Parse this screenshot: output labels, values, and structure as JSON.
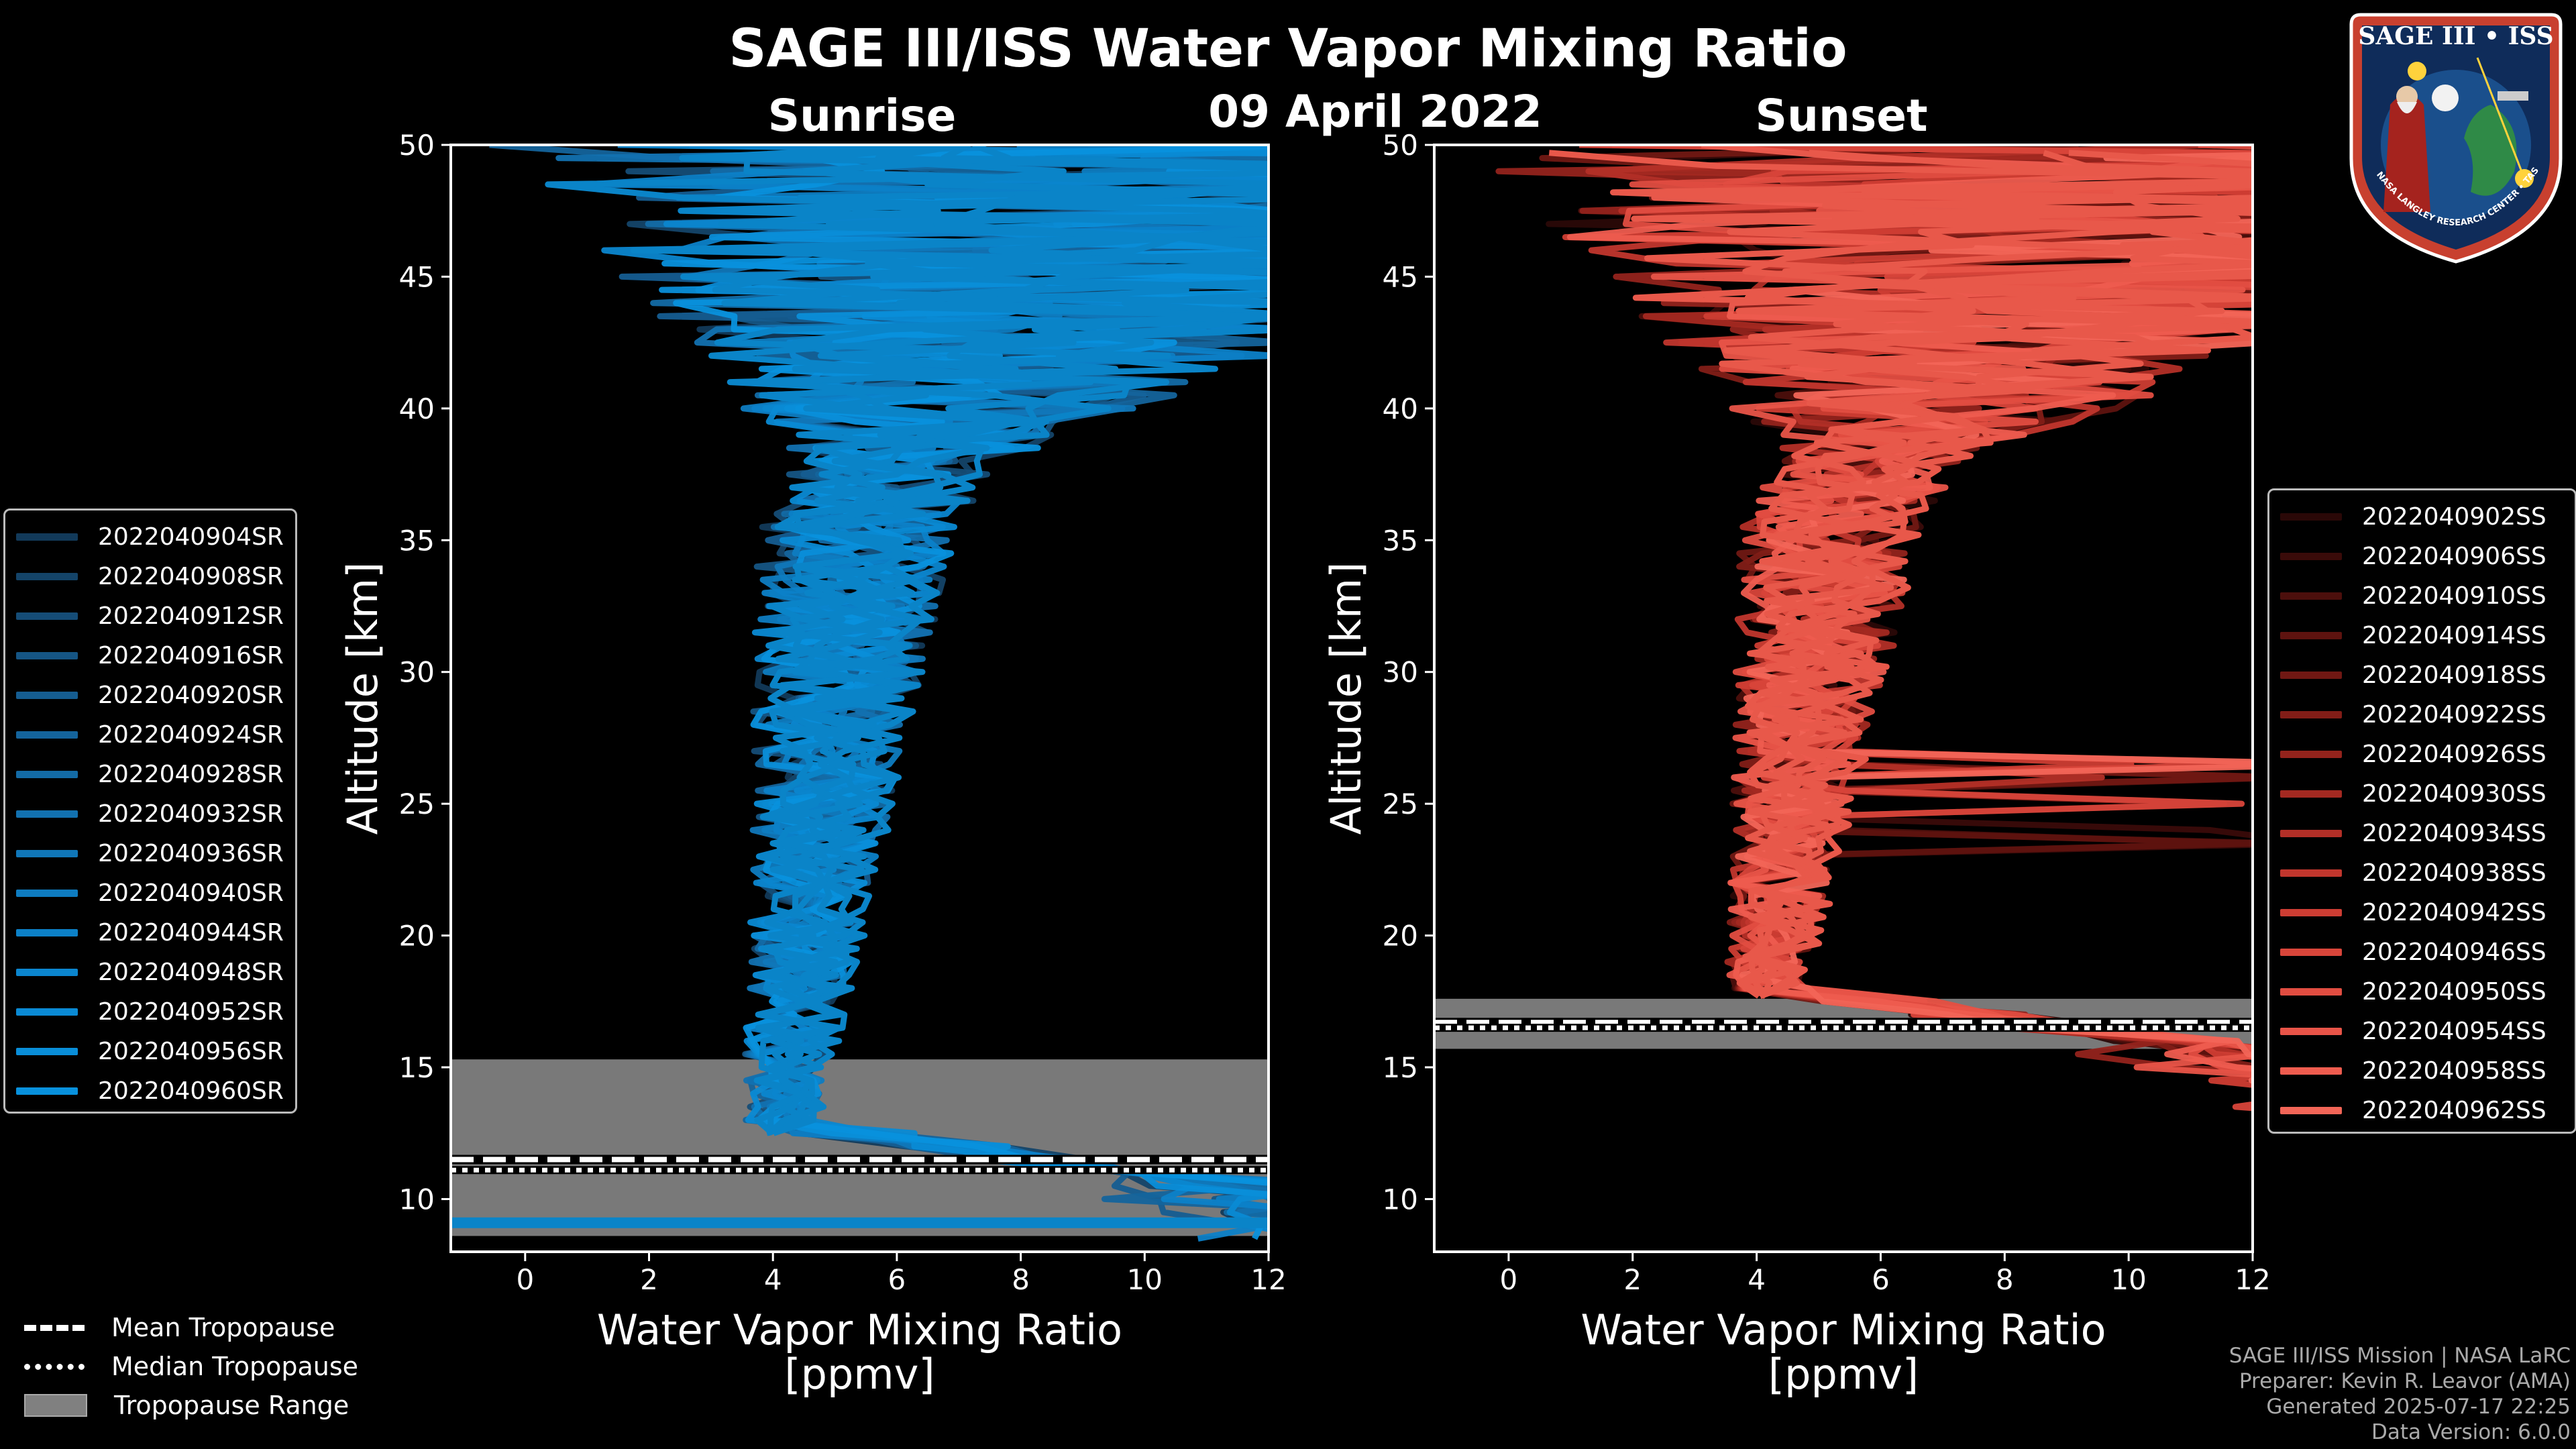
{
  "title": "SAGE III/ISS Water Vapor Mixing Ratio",
  "date": "09 April 2022",
  "logo": {
    "text": "SAGE III • ISS",
    "ring_text": "BALL • NASA LANGLEY RESEARCH CENTER • TAS • ESA"
  },
  "credits": {
    "mission": "SAGE III/ISS Mission | NASA LaRC",
    "preparer": "Preparer: Kevin R. Leavor (AMA)",
    "generated": "Generated 2025-07-17 22:25",
    "version": "Data Version: 6.0.0"
  },
  "tropopause_legend": [
    {
      "label": "Mean Tropopause",
      "style": "dashed"
    },
    {
      "label": "Median Tropopause",
      "style": "dotted"
    },
    {
      "label": "Tropopause Range",
      "style": "patch"
    }
  ],
  "chart_data": [
    {
      "type": "line",
      "title": "Sunrise",
      "xlabel": "Water Vapor Mixing Ratio\n[ppmv]",
      "xlabel_lines": [
        "Water Vapor Mixing Ratio",
        "[ppmv]"
      ],
      "ylabel": "Altitude [km]",
      "xlim": [
        -1.2,
        12
      ],
      "ylim": [
        8,
        50
      ],
      "xticks": [
        0,
        2,
        4,
        6,
        8,
        10,
        12
      ],
      "yticks": [
        10,
        15,
        20,
        25,
        30,
        35,
        40,
        45,
        50
      ],
      "tropopause": {
        "mean": 11.5,
        "median": 11.1,
        "range": [
          8.6,
          15.3
        ]
      },
      "line_color": "#0a84c8",
      "series": [
        {
          "name": "2022040904SR",
          "color": "#123a5a"
        },
        {
          "name": "2022040908SR",
          "color": "#144469"
        },
        {
          "name": "2022040912SR",
          "color": "#154d77"
        },
        {
          "name": "2022040916SR",
          "color": "#155584"
        },
        {
          "name": "2022040920SR",
          "color": "#155d91"
        },
        {
          "name": "2022040924SR",
          "color": "#14649c"
        },
        {
          "name": "2022040928SR",
          "color": "#136ba6"
        },
        {
          "name": "2022040932SR",
          "color": "#1271b0"
        },
        {
          "name": "2022040936SR",
          "color": "#1077b9"
        },
        {
          "name": "2022040940SR",
          "color": "#0e7cc1"
        },
        {
          "name": "2022040944SR",
          "color": "#0c81c8"
        },
        {
          "name": "2022040948SR",
          "color": "#0b86cf"
        },
        {
          "name": "2022040952SR",
          "color": "#0a8ad4"
        },
        {
          "name": "2022040956SR",
          "color": "#098ed9"
        },
        {
          "name": "2022040960SR",
          "color": "#0891dd"
        }
      ]
    },
    {
      "type": "line",
      "title": "Sunset",
      "xlabel": "Water Vapor Mixing Ratio\n[ppmv]",
      "xlabel_lines": [
        "Water Vapor Mixing Ratio",
        "[ppmv]"
      ],
      "ylabel": "Altitude [km]",
      "xlim": [
        -1.2,
        12
      ],
      "ylim": [
        8,
        50
      ],
      "xticks": [
        0,
        2,
        4,
        6,
        8,
        10,
        12
      ],
      "yticks": [
        10,
        15,
        20,
        25,
        30,
        35,
        40,
        45,
        50
      ],
      "tropopause": {
        "mean": 16.7,
        "median": 16.5,
        "range": [
          15.7,
          17.6
        ]
      },
      "line_color": "#e8584a",
      "series": [
        {
          "name": "2022040902SS",
          "color": "#2a0807"
        },
        {
          "name": "2022040906SS",
          "color": "#3a0b09"
        },
        {
          "name": "2022040910SS",
          "color": "#4c0f0c"
        },
        {
          "name": "2022040914SS",
          "color": "#5e130f"
        },
        {
          "name": "2022040918SS",
          "color": "#701813"
        },
        {
          "name": "2022040922SS",
          "color": "#821d17"
        },
        {
          "name": "2022040926SS",
          "color": "#93231c"
        },
        {
          "name": "2022040930SS",
          "color": "#a42921"
        },
        {
          "name": "2022040934SS",
          "color": "#b32f27"
        },
        {
          "name": "2022040938SS",
          "color": "#c1362d"
        },
        {
          "name": "2022040942SS",
          "color": "#cd3d33"
        },
        {
          "name": "2022040946SS",
          "color": "#d8453a"
        },
        {
          "name": "2022040950SS",
          "color": "#e14d41"
        },
        {
          "name": "2022040954SS",
          "color": "#e85448"
        },
        {
          "name": "2022040958SS",
          "color": "#ee5c4f"
        },
        {
          "name": "2022040962SS",
          "color": "#f26557"
        }
      ]
    }
  ]
}
